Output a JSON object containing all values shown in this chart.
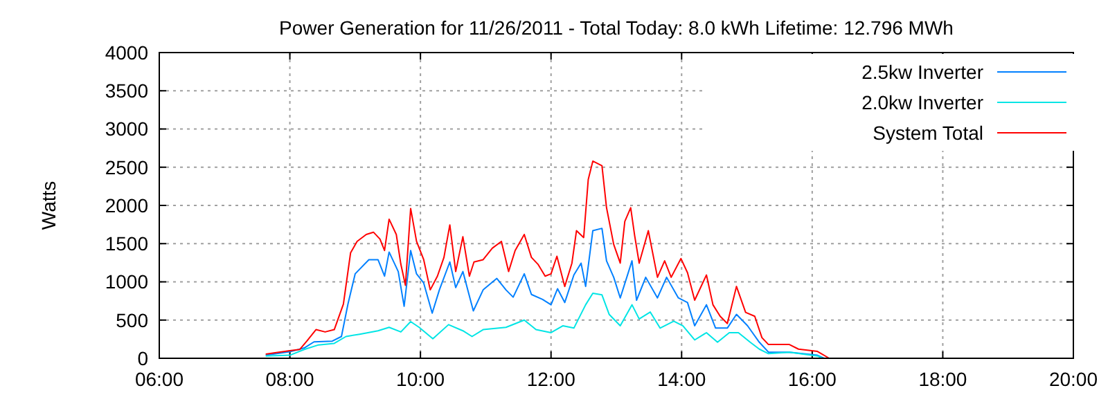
{
  "chart_data": {
    "type": "line",
    "title": "Power Generation for 11/26/2011 - Total Today: 8.0 kWh   Lifetime: 12.796 MWh",
    "ylabel": "Watts",
    "xlim": [
      6,
      20
    ],
    "xticks": [
      {
        "value": 6,
        "label": "06:00"
      },
      {
        "value": 8,
        "label": "08:00"
      },
      {
        "value": 10,
        "label": "10:00"
      },
      {
        "value": 12,
        "label": "12:00"
      },
      {
        "value": 14,
        "label": "14:00"
      },
      {
        "value": 16,
        "label": "16:00"
      },
      {
        "value": 18,
        "label": "18:00"
      },
      {
        "value": 20,
        "label": "20:00"
      }
    ],
    "ylim": [
      0,
      4000
    ],
    "yticks": [
      0,
      500,
      1000,
      1500,
      2000,
      2500,
      3000,
      3500,
      4000
    ],
    "grid": true,
    "legend": "top right",
    "marker": "none",
    "line_style": "solid",
    "series": [
      {
        "name": "2.5kw Inverter",
        "color": "#0080ff",
        "x": [
          7.63,
          8.0,
          8.22,
          8.37,
          8.65,
          8.79,
          8.89,
          9.0,
          9.21,
          9.35,
          9.45,
          9.52,
          9.66,
          9.75,
          9.85,
          9.94,
          10.05,
          10.18,
          10.29,
          10.45,
          10.54,
          10.65,
          10.81,
          10.96,
          11.17,
          11.31,
          11.42,
          11.59,
          11.7,
          11.87,
          12.0,
          12.1,
          12.21,
          12.35,
          12.46,
          12.53,
          12.64,
          12.78,
          12.85,
          12.96,
          13.06,
          13.24,
          13.31,
          13.45,
          13.63,
          13.77,
          13.95,
          14.09,
          14.2,
          14.38,
          14.52,
          14.7,
          14.84,
          15.01,
          15.19,
          15.33,
          15.65,
          16.08,
          16.18
        ],
        "values": [
          40,
          85,
          135,
          215,
          225,
          285,
          710,
          1105,
          1290,
          1290,
          1075,
          1390,
          1135,
          680,
          1410,
          1105,
          985,
          590,
          895,
          1260,
          925,
          1135,
          620,
          895,
          1045,
          895,
          800,
          1105,
          835,
          770,
          700,
          910,
          730,
          1090,
          1245,
          940,
          1670,
          1700,
          1275,
          1060,
          790,
          1275,
          760,
          1060,
          790,
          1060,
          790,
          730,
          425,
          700,
          395,
          395,
          575,
          425,
          210,
          80,
          80,
          40,
          0
        ]
      },
      {
        "name": "2.0kw Inverter",
        "color": "#00e5e5",
        "x": [
          7.63,
          8.0,
          8.22,
          8.44,
          8.68,
          8.86,
          9.07,
          9.35,
          9.52,
          9.7,
          9.85,
          9.98,
          10.19,
          10.43,
          10.65,
          10.79,
          10.96,
          11.31,
          11.59,
          11.77,
          12.0,
          12.18,
          12.35,
          12.53,
          12.64,
          12.78,
          12.89,
          13.06,
          13.24,
          13.35,
          13.52,
          13.67,
          13.88,
          14.02,
          14.2,
          14.38,
          14.55,
          14.73,
          14.87,
          15.05,
          15.19,
          15.33,
          15.65,
          16.08,
          16.16
        ],
        "values": [
          30,
          40,
          115,
          175,
          195,
          285,
          315,
          360,
          405,
          345,
          480,
          405,
          255,
          440,
          360,
          285,
          375,
          405,
          500,
          375,
          335,
          425,
          395,
          700,
          850,
          830,
          575,
          425,
          700,
          515,
          605,
          395,
          485,
          425,
          240,
          335,
          210,
          335,
          335,
          210,
          120,
          60,
          80,
          30,
          0
        ]
      },
      {
        "name": "System Total",
        "color": "#ff0000",
        "x": [
          7.63,
          8.0,
          8.15,
          8.26,
          8.4,
          8.54,
          8.68,
          8.82,
          8.93,
          9.03,
          9.17,
          9.28,
          9.38,
          9.45,
          9.52,
          9.63,
          9.7,
          9.77,
          9.85,
          9.94,
          10.05,
          10.15,
          10.26,
          10.36,
          10.45,
          10.54,
          10.65,
          10.75,
          10.82,
          10.96,
          11.1,
          11.24,
          11.35,
          11.45,
          11.59,
          11.7,
          11.8,
          11.91,
          12.0,
          12.09,
          12.21,
          12.32,
          12.39,
          12.5,
          12.57,
          12.64,
          12.78,
          12.85,
          12.96,
          13.06,
          13.13,
          13.22,
          13.28,
          13.35,
          13.49,
          13.63,
          13.74,
          13.84,
          13.99,
          14.09,
          14.2,
          14.38,
          14.48,
          14.59,
          14.7,
          14.84,
          14.98,
          15.12,
          15.23,
          15.33,
          15.65,
          15.79,
          16.08,
          16.26
        ],
        "values": [
          55,
          100,
          115,
          225,
          375,
          345,
          375,
          710,
          1380,
          1530,
          1620,
          1650,
          1560,
          1410,
          1820,
          1620,
          1230,
          955,
          1960,
          1530,
          1290,
          895,
          1075,
          1320,
          1745,
          1135,
          1590,
          1075,
          1260,
          1290,
          1440,
          1530,
          1135,
          1410,
          1620,
          1320,
          1230,
          1075,
          1105,
          1335,
          940,
          1245,
          1670,
          1580,
          2340,
          2580,
          2520,
          1970,
          1490,
          1245,
          1790,
          1970,
          1610,
          1245,
          1670,
          1060,
          1275,
          1060,
          1305,
          1120,
          760,
          1090,
          700,
          550,
          455,
          940,
          600,
          550,
          270,
          180,
          180,
          120,
          90,
          0
        ]
      }
    ]
  }
}
